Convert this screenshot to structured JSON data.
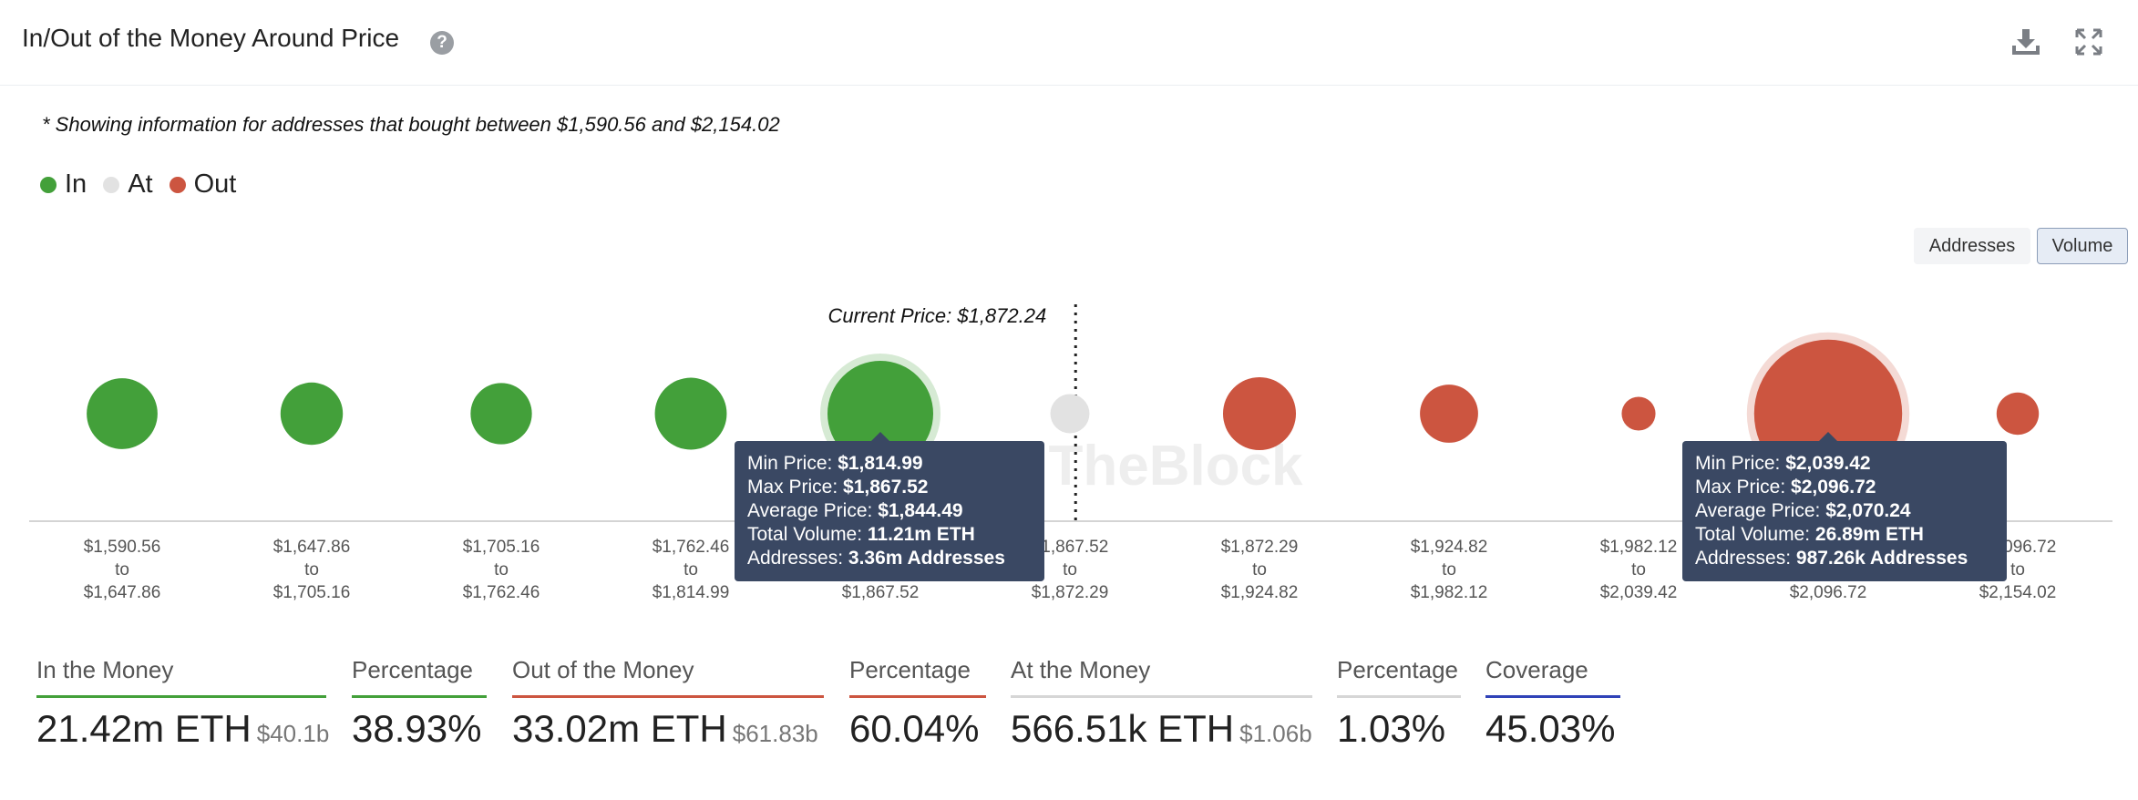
{
  "header": {
    "title": "In/Out of the Money Around Price"
  },
  "note": "* Showing information for addresses that bought between $1,590.56 and $2,154.02",
  "legend": [
    {
      "label": "In",
      "color": "#43a03a"
    },
    {
      "label": "At",
      "color": "#e2e2e2"
    },
    {
      "label": "Out",
      "color": "#cc5540"
    }
  ],
  "toggle": {
    "addresses": "Addresses",
    "volume": "Volume"
  },
  "watermark": "TheBlock",
  "chart_data": {
    "type": "scatter",
    "current_price_label": "Current Price: $1,872.24",
    "current_price_after_index": 5,
    "colors": {
      "In": "#43a03a",
      "At": "#e2e2e2",
      "Out": "#cc5540"
    },
    "bins": [
      {
        "from": "$1,590.56",
        "to": "$1,647.86",
        "status": "In",
        "size": 0.67
      },
      {
        "from": "$1,647.86",
        "to": "$1,705.16",
        "status": "In",
        "size": 0.59
      },
      {
        "from": "$1,705.16",
        "to": "$1,762.46",
        "status": "In",
        "size": 0.58
      },
      {
        "from": "$1,762.46",
        "to": "$1,814.99",
        "status": "In",
        "size": 0.68
      },
      {
        "from": "$1,814.99",
        "to": "$1,867.52",
        "status": "In",
        "size": 1.0,
        "highlight": true
      },
      {
        "from": "$1,867.52",
        "to": "$1,872.29",
        "status": "At",
        "size": 0.37
      },
      {
        "from": "$1,872.29",
        "to": "$1,924.82",
        "status": "Out",
        "size": 0.69
      },
      {
        "from": "$1,924.82",
        "to": "$1,982.12",
        "status": "Out",
        "size": 0.55
      },
      {
        "from": "$1,982.12",
        "to": "$2,039.42",
        "status": "Out",
        "size": 0.32
      },
      {
        "from": "$2,039.42",
        "to": "$2,096.72",
        "status": "Out",
        "size": 1.4,
        "highlight": true
      },
      {
        "from": "$2,096.72",
        "to": "$2,154.02",
        "status": "Out",
        "size": 0.4
      }
    ],
    "tooltips": [
      {
        "bin": 4,
        "rows": [
          {
            "label": "Min Price: ",
            "value": "$1,814.99"
          },
          {
            "label": "Max Price: ",
            "value": "$1,867.52"
          },
          {
            "label": "Average Price: ",
            "value": "$1,844.49"
          },
          {
            "label": "Total Volume: ",
            "value": "11.21m ETH"
          },
          {
            "label": "Addresses: ",
            "value": "3.36m Addresses"
          }
        ]
      },
      {
        "bin": 9,
        "rows": [
          {
            "label": "Min Price: ",
            "value": "$2,039.42"
          },
          {
            "label": "Max Price: ",
            "value": "$2,096.72"
          },
          {
            "label": "Average Price: ",
            "value": "$2,070.24"
          },
          {
            "label": "Total Volume: ",
            "value": "26.89m ETH"
          },
          {
            "label": "Addresses: ",
            "value": "987.26k Addresses"
          }
        ]
      }
    ]
  },
  "stats": [
    {
      "label": "In the Money",
      "value": "21.42m ETH",
      "sub": "$40.1b",
      "color": "#43a03a"
    },
    {
      "label": "Percentage",
      "value": "38.93%",
      "sub": "",
      "color": "#43a03a"
    },
    {
      "label": "Out of the Money",
      "value": "33.02m ETH",
      "sub": "$61.83b",
      "color": "#cc5540"
    },
    {
      "label": "Percentage",
      "value": "60.04%",
      "sub": "",
      "color": "#cc5540"
    },
    {
      "label": "At the Money",
      "value": "566.51k ETH",
      "sub": "$1.06b",
      "color": "#d6d6d6"
    },
    {
      "label": "Percentage",
      "value": "1.03%",
      "sub": "",
      "color": "#d6d6d6"
    },
    {
      "label": "Coverage",
      "value": "45.03%",
      "sub": "",
      "color": "#3042b8"
    }
  ]
}
